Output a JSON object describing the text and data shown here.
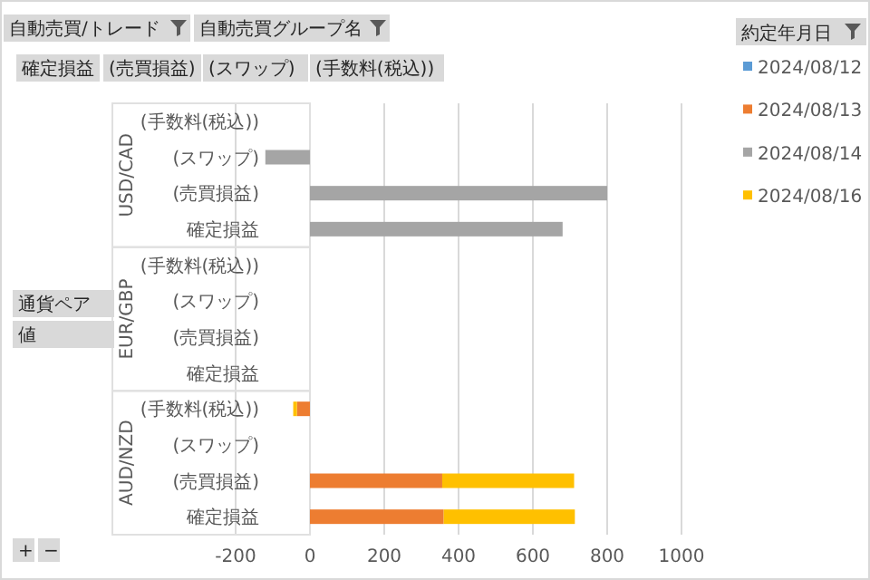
{
  "chart_data": {
    "type": "bar",
    "orientation": "horizontal",
    "stacked": true,
    "categories": [
      "(手数料(税込))",
      "(スワップ)",
      "(売買損益)",
      "確定損益",
      "(手数料(税込))",
      "(スワップ)",
      "(売買損益)",
      "確定損益",
      "(手数料(税込))",
      "(スワップ)",
      "(売買損益)",
      "確定損益"
    ],
    "series": [
      {
        "name": "2024/08/12",
        "color": "#5b9bd5",
        "values": [
          null,
          null,
          null,
          null,
          null,
          null,
          null,
          null,
          null,
          null,
          null,
          null
        ]
      },
      {
        "name": "2024/08/13",
        "color": "#ed7d31",
        "values": [
          null,
          null,
          null,
          null,
          null,
          null,
          null,
          null,
          -35,
          null,
          356,
          360
        ]
      },
      {
        "name": "2024/08/14",
        "color": "#a5a5a5",
        "values": [
          null,
          -120,
          800,
          680,
          null,
          null,
          null,
          null,
          null,
          null,
          null,
          null
        ]
      },
      {
        "name": "2024/08/16",
        "color": "#ffc000",
        "values": [
          null,
          null,
          null,
          null,
          null,
          null,
          null,
          null,
          -10,
          null,
          355,
          353
        ]
      }
    ],
    "xlim": [
      -200,
      1000
    ],
    "xticks": [
      -200,
      0,
      200,
      400,
      600,
      800,
      1000
    ],
    "grid": "x",
    "legend": "right",
    "legend_title": "約定年月日",
    "annotations": [
      "自動売買/トレード",
      "自動売買グループ名",
      "確定損益",
      "(売買損益)",
      "(スワップ)",
      "(手数料(税込))",
      "通貨ペア",
      "値",
      "USD/CAD",
      "EUR/GBP",
      "AUD/NZD",
      "+",
      "−"
    ]
  }
}
